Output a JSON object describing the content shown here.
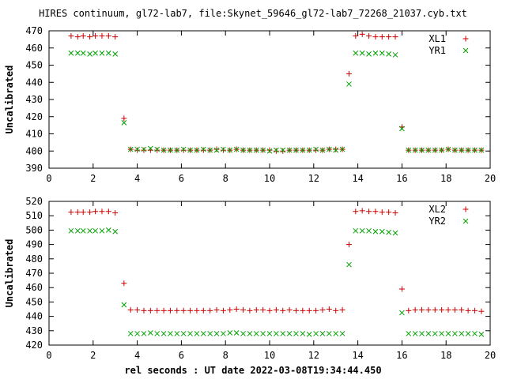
{
  "title": "HIRES continuum, gl72-lab7, file:Skynet_59646_gl72-lab7_72268_21037.cyb.txt",
  "xlabel": "rel seconds : UT date 2022-03-08T19:34:44.450",
  "colors": {
    "series1": "#cc0000",
    "series2": "#00a000",
    "axis": "#000000"
  },
  "chart_data": [
    {
      "type": "scatter",
      "ylabel": "Uncalibrated",
      "xlim": [
        0,
        20
      ],
      "ylim": [
        390,
        470
      ],
      "xticks": [
        0,
        2,
        4,
        6,
        8,
        10,
        12,
        14,
        16,
        18,
        20
      ],
      "yticks": [
        390,
        400,
        410,
        420,
        430,
        440,
        450,
        460,
        470
      ],
      "legend_position": "top-right",
      "grid": false,
      "series": [
        {
          "name": "XL1",
          "marker": "plus",
          "x": [
            1.0,
            1.3,
            1.55,
            1.85,
            2.1,
            2.4,
            2.7,
            3.0,
            3.4,
            3.7,
            4.0,
            4.3,
            4.6,
            4.9,
            5.2,
            5.5,
            5.8,
            6.1,
            6.4,
            6.7,
            7.0,
            7.3,
            7.6,
            7.9,
            8.2,
            8.5,
            8.8,
            9.1,
            9.4,
            9.7,
            10.0,
            10.3,
            10.6,
            10.9,
            11.2,
            11.5,
            11.8,
            12.1,
            12.4,
            12.7,
            13.0,
            13.3,
            13.6,
            13.9,
            14.2,
            14.5,
            14.8,
            15.1,
            15.4,
            15.7,
            16.0,
            16.3,
            16.6,
            16.9,
            17.2,
            17.5,
            17.8,
            18.1,
            18.4,
            18.7,
            19.0,
            19.3,
            19.6
          ],
          "y": [
            467,
            466.5,
            467,
            466.5,
            467,
            467,
            467,
            466.5,
            419,
            401,
            400.5,
            400.5,
            400.5,
            400.5,
            400.5,
            400.5,
            400.5,
            400.5,
            400.5,
            400.5,
            400.5,
            400.5,
            401,
            400.5,
            400.5,
            401,
            400.5,
            400.5,
            400.5,
            400.5,
            400.5,
            400,
            400,
            400.5,
            400.5,
            400.5,
            400.5,
            400.5,
            400.5,
            401,
            401,
            401,
            445,
            467,
            468,
            467,
            466.5,
            466.5,
            466.5,
            466.5,
            414,
            400.5,
            400.5,
            400.5,
            400.5,
            400.5,
            400.5,
            401,
            400.5,
            400.5,
            400.5,
            400.5,
            400.5
          ]
        },
        {
          "name": "YR1",
          "marker": "cross",
          "x": [
            1.0,
            1.3,
            1.55,
            1.85,
            2.1,
            2.4,
            2.7,
            3.0,
            3.4,
            3.7,
            4.0,
            4.3,
            4.6,
            4.9,
            5.2,
            5.5,
            5.8,
            6.1,
            6.4,
            6.7,
            7.0,
            7.3,
            7.6,
            7.9,
            8.2,
            8.5,
            8.8,
            9.1,
            9.4,
            9.7,
            10.0,
            10.3,
            10.6,
            10.9,
            11.2,
            11.5,
            11.8,
            12.1,
            12.4,
            12.7,
            13.0,
            13.3,
            13.6,
            13.9,
            14.2,
            14.5,
            14.8,
            15.1,
            15.4,
            15.7,
            16.0,
            16.3,
            16.6,
            16.9,
            17.2,
            17.5,
            17.8,
            18.1,
            18.4,
            18.7,
            19.0,
            19.3,
            19.6
          ],
          "y": [
            457,
            457,
            457,
            456.5,
            457,
            457,
            457,
            456.5,
            416.5,
            401,
            401,
            401,
            401.5,
            401,
            400.5,
            400.5,
            400.5,
            401,
            400.5,
            400.5,
            401,
            400.5,
            400.5,
            401,
            400.5,
            401,
            400.5,
            400.5,
            400.5,
            400.5,
            400,
            400.5,
            400.5,
            400.5,
            400.5,
            400.5,
            400.5,
            401,
            400.5,
            401,
            400.5,
            401,
            439,
            457,
            457,
            456.5,
            457,
            457,
            456.5,
            456,
            413,
            400.5,
            400.5,
            400.5,
            400.5,
            400.5,
            400.5,
            401,
            400.5,
            400.5,
            400.5,
            400.5,
            400.5
          ]
        }
      ]
    },
    {
      "type": "scatter",
      "ylabel": "Uncalibrated",
      "xlim": [
        0,
        20
      ],
      "ylim": [
        420,
        520
      ],
      "xticks": [
        0,
        2,
        4,
        6,
        8,
        10,
        12,
        14,
        16,
        18,
        20
      ],
      "yticks": [
        420,
        430,
        440,
        450,
        460,
        470,
        480,
        490,
        500,
        510,
        520
      ],
      "legend_position": "top-right",
      "grid": false,
      "series": [
        {
          "name": "XL2",
          "marker": "plus",
          "x": [
            1.0,
            1.3,
            1.55,
            1.85,
            2.1,
            2.4,
            2.7,
            3.0,
            3.4,
            3.7,
            4.0,
            4.3,
            4.6,
            4.9,
            5.2,
            5.5,
            5.8,
            6.1,
            6.4,
            6.7,
            7.0,
            7.3,
            7.6,
            7.9,
            8.2,
            8.5,
            8.8,
            9.1,
            9.4,
            9.7,
            10.0,
            10.3,
            10.6,
            10.9,
            11.2,
            11.5,
            11.8,
            12.1,
            12.4,
            12.7,
            13.0,
            13.3,
            13.6,
            13.9,
            14.2,
            14.5,
            14.8,
            15.1,
            15.4,
            15.7,
            16.0,
            16.3,
            16.6,
            16.9,
            17.2,
            17.5,
            17.8,
            18.1,
            18.4,
            18.7,
            19.0,
            19.3,
            19.6
          ],
          "y": [
            512.5,
            512.5,
            512.5,
            512.5,
            513,
            513,
            513,
            512,
            463,
            444.5,
            444.5,
            444,
            444,
            444,
            444,
            444,
            444,
            444,
            444,
            444,
            444,
            444,
            444.5,
            444,
            444.5,
            445,
            444.5,
            444,
            444.5,
            444.5,
            444,
            444.5,
            444,
            444.5,
            444,
            444,
            444,
            444,
            444.5,
            445,
            444,
            444.5,
            490,
            513,
            513.5,
            513,
            513,
            512.5,
            512.5,
            512,
            459,
            444,
            444.5,
            444.5,
            444.5,
            444.5,
            444.5,
            444.5,
            444.5,
            444.5,
            444,
            444,
            443.5
          ]
        },
        {
          "name": "YR2",
          "marker": "cross",
          "x": [
            1.0,
            1.3,
            1.55,
            1.85,
            2.1,
            2.4,
            2.7,
            3.0,
            3.4,
            3.7,
            4.0,
            4.3,
            4.6,
            4.9,
            5.2,
            5.5,
            5.8,
            6.1,
            6.4,
            6.7,
            7.0,
            7.3,
            7.6,
            7.9,
            8.2,
            8.5,
            8.8,
            9.1,
            9.4,
            9.7,
            10.0,
            10.3,
            10.6,
            10.9,
            11.2,
            11.5,
            11.8,
            12.1,
            12.4,
            12.7,
            13.0,
            13.3,
            13.6,
            13.9,
            14.2,
            14.5,
            14.8,
            15.1,
            15.4,
            15.7,
            16.0,
            16.3,
            16.6,
            16.9,
            17.2,
            17.5,
            17.8,
            18.1,
            18.4,
            18.7,
            19.0,
            19.3,
            19.6
          ],
          "y": [
            499.5,
            499.5,
            499.5,
            499.5,
            499.5,
            499.5,
            500,
            499,
            448,
            428,
            428,
            428,
            428.5,
            428,
            428,
            428,
            428,
            428,
            428,
            428,
            428,
            428,
            428,
            428,
            428.5,
            428.5,
            428,
            428,
            428,
            428,
            428,
            428,
            428,
            428,
            428,
            428,
            427.5,
            428,
            428,
            428,
            428,
            428,
            476,
            499.5,
            499.5,
            499.5,
            499,
            499,
            498.5,
            498,
            442.5,
            428,
            428,
            428,
            428,
            428,
            428,
            428,
            428,
            428,
            428,
            428,
            427.5
          ]
        }
      ]
    }
  ]
}
